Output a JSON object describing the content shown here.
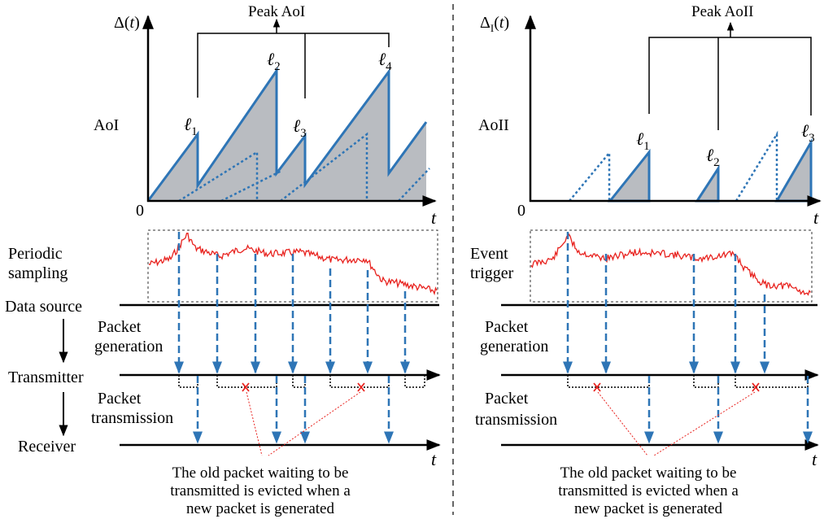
{
  "left": {
    "yaxis": "Δ(t)",
    "peak_label": "Peak AoI",
    "metric_label": "AoI",
    "origin": "0",
    "xaxis": "t",
    "peaks": [
      "ℓ1",
      "ℓ2",
      "ℓ3",
      "ℓ4"
    ],
    "sampling_label_1": "Periodic",
    "sampling_label_2": "sampling"
  },
  "right": {
    "yaxis": "ΔI(t)",
    "peak_label": "Peak AoII",
    "metric_label": "AoII",
    "origin": "0",
    "xaxis": "t",
    "peaks": [
      "ℓ1",
      "ℓ2",
      "ℓ3"
    ],
    "sampling_label_1": "Event",
    "sampling_label_2": "trigger"
  },
  "pipeline": {
    "data_source": "Data source",
    "gen_1": "Packet",
    "gen_2": "generation",
    "transmitter": "Transmitter",
    "tx_1": "Packet",
    "tx_2": "transmission",
    "receiver": "Receiver",
    "time": "t"
  },
  "note": {
    "line1": "The old packet waiting to be",
    "line2": "transmitted is evicted when a",
    "line3": "new packet is generated"
  },
  "colors": {
    "aoi_fill": "#b9bcc1",
    "blue": "#2e75b6",
    "red": "#e8221e"
  }
}
